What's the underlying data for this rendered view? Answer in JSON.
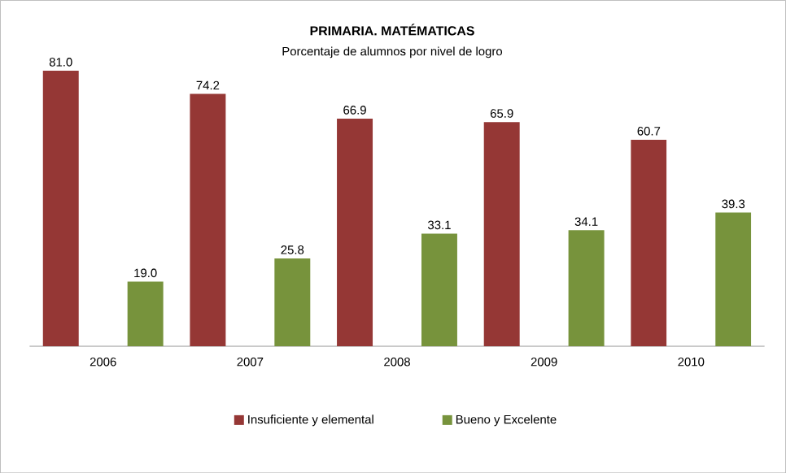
{
  "chart_data": {
    "type": "bar",
    "title": "PRIMARIA. MATÉMATICAS",
    "subtitle": "Porcentaje de alumnos  por nivel de logro",
    "categories": [
      "2006",
      "2007",
      "2008",
      "2009",
      "2010"
    ],
    "series": [
      {
        "name": "Insuficiente y elemental",
        "color": "#953735",
        "values": [
          81.0,
          74.2,
          66.9,
          65.9,
          60.7
        ],
        "value_labels": [
          "81.0",
          "74.2",
          "66.9",
          "65.9",
          "60.7"
        ]
      },
      {
        "name": "Bueno y Excelente",
        "color": "#77933c",
        "values": [
          19.0,
          25.8,
          33.1,
          34.1,
          39.3
        ],
        "value_labels": [
          "19.0",
          "25.8",
          "33.1",
          "34.1",
          "39.3"
        ]
      }
    ],
    "legend": "bottom"
  }
}
